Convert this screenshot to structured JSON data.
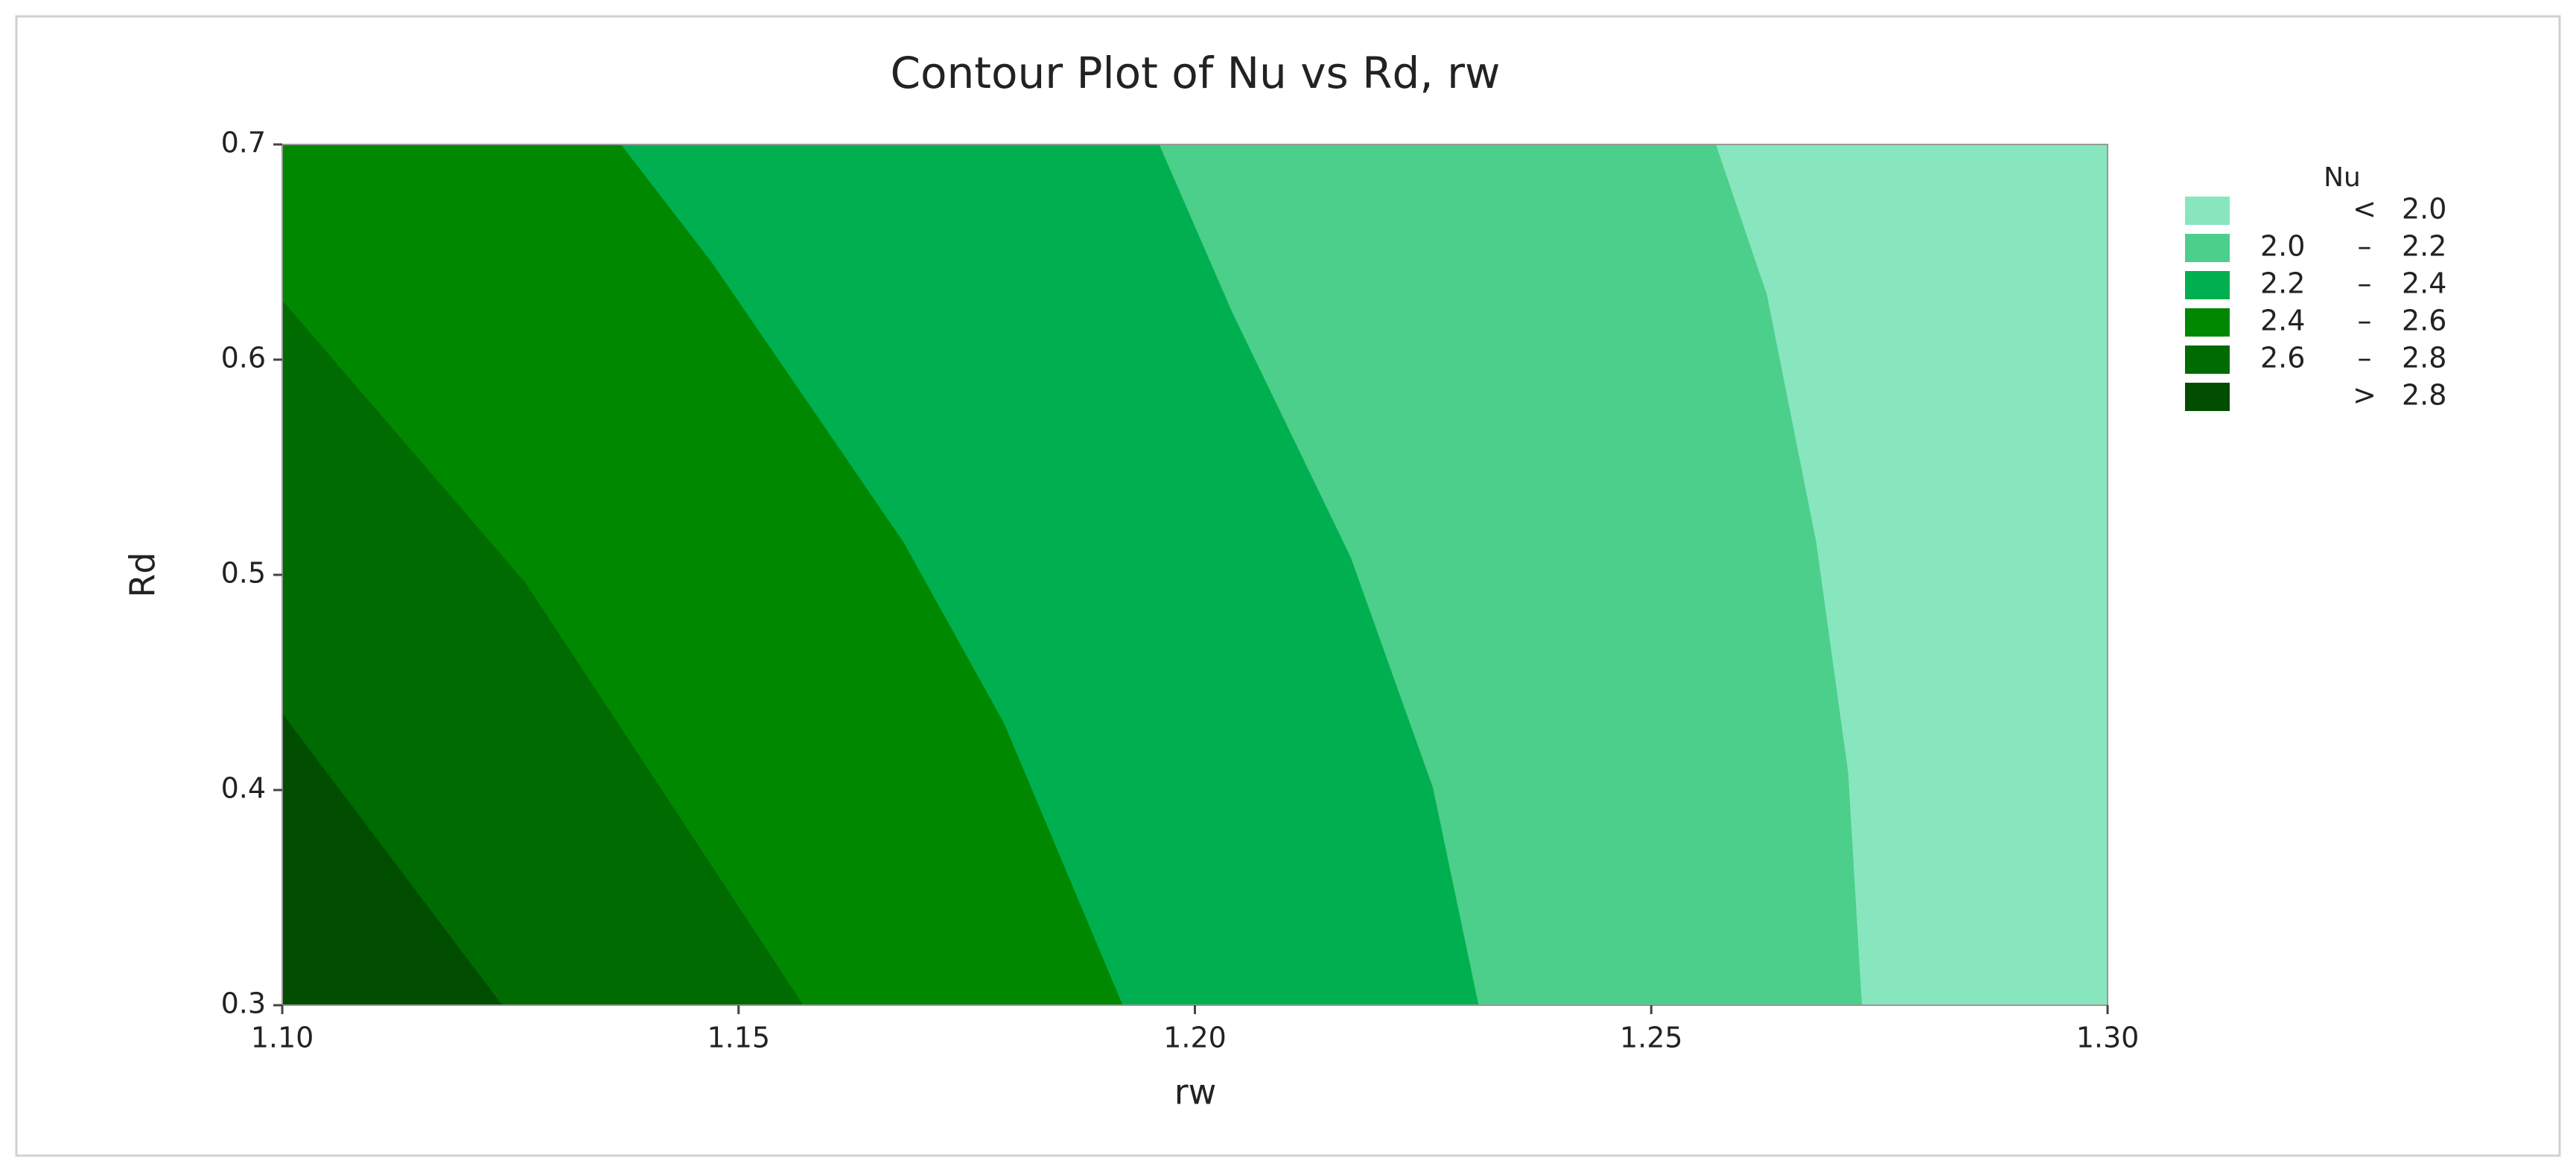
{
  "chart_data": {
    "type": "contour",
    "title": "Contour Plot of Nu vs Rd, rw",
    "x_label": "rw",
    "y_label": "Rd",
    "xlim": [
      1.1,
      1.3
    ],
    "ylim": [
      0.3,
      0.7
    ],
    "xticks": [
      {
        "value": 1.1,
        "label": "1.10"
      },
      {
        "value": 1.15,
        "label": "1.15"
      },
      {
        "value": 1.2,
        "label": "1.20"
      },
      {
        "value": 1.25,
        "label": "1.25"
      },
      {
        "value": 1.3,
        "label": "1.30"
      }
    ],
    "yticks": [
      0.3,
      0.4,
      0.5,
      0.6,
      0.7
    ],
    "legend": {
      "title": "Nu",
      "position": "right",
      "items": [
        {
          "op": "<",
          "high": "2.0",
          "color": "#88e6bf"
        },
        {
          "low": "2.0",
          "op": "–",
          "high": "2.2",
          "color": "#4ccf8b"
        },
        {
          "low": "2.2",
          "op": "–",
          "high": "2.4",
          "color": "#00b050"
        },
        {
          "low": "2.4",
          "op": "–",
          "high": "2.6",
          "color": "#008800"
        },
        {
          "low": "2.6",
          "op": "–",
          "high": "2.8",
          "color": "#006b00"
        },
        {
          "op": ">",
          "high": "2.8",
          "color": "#004d00"
        }
      ]
    },
    "contours": [
      {
        "x": [
          1.257,
          1.2626,
          1.268,
          1.2715,
          1.273
        ],
        "y": [
          0.7,
          0.63,
          0.515,
          0.408,
          0.3
        ]
      },
      {
        "x": [
          1.196,
          1.204,
          1.217,
          1.226,
          1.231
        ],
        "y": [
          0.7,
          0.622,
          0.508,
          0.401,
          0.3
        ]
      },
      {
        "x": [
          1.137,
          1.147,
          1.168,
          1.179,
          1.192
        ],
        "y": [
          0.7,
          0.645,
          0.515,
          0.431,
          0.3
        ]
      },
      {
        "x": [
          1.1,
          1.1266,
          1.157
        ],
        "y": [
          0.627,
          0.496,
          0.3
        ]
      },
      {
        "x": [
          1.1,
          1.124
        ],
        "y": [
          0.435,
          0.3
        ]
      }
    ]
  }
}
